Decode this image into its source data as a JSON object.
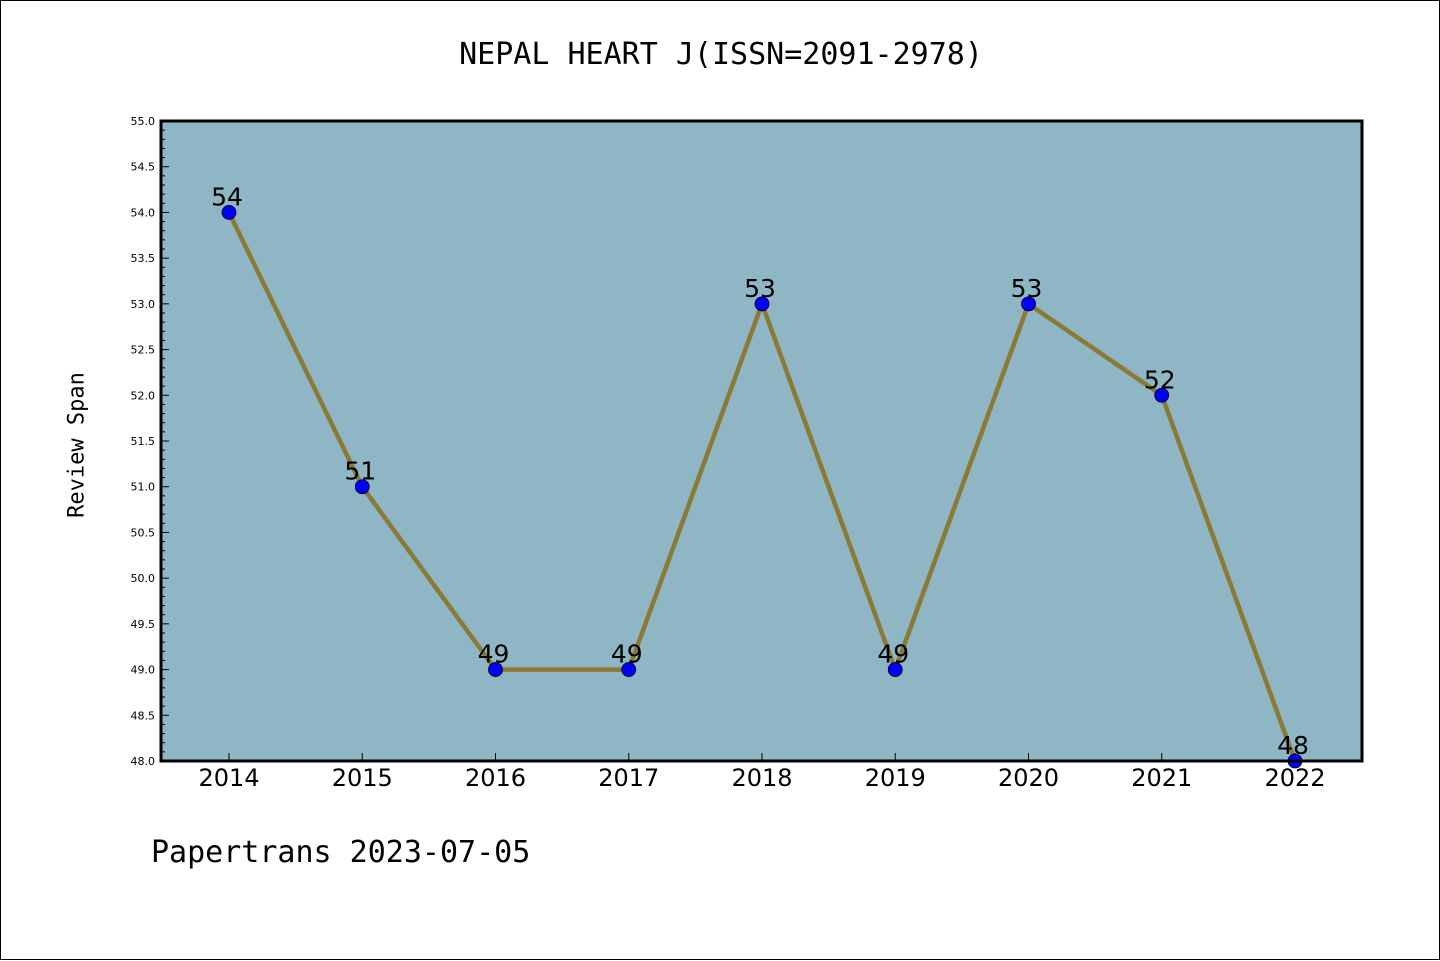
{
  "chart_data": {
    "type": "line",
    "title": "NEPAL HEART J(ISSN=2091-2978)",
    "xlabel": "",
    "ylabel": "Review Span",
    "categories": [
      "2014",
      "2015",
      "2016",
      "2017",
      "2018",
      "2019",
      "2020",
      "2021",
      "2022"
    ],
    "series": [
      {
        "values": [
          54,
          51,
          49,
          49,
          53,
          49,
          53,
          52,
          48
        ]
      }
    ],
    "data_labels": [
      "54",
      "51",
      "49",
      "49",
      "53",
      "49",
      "53",
      "52",
      "48"
    ],
    "y_ticks": [
      "48.0",
      "48.5",
      "49.0",
      "49.5",
      "50.0",
      "50.5",
      "51.0",
      "51.5",
      "52.0",
      "52.5",
      "53.0",
      "53.5",
      "54.0",
      "54.5",
      "55.0"
    ],
    "ylim": [
      48,
      55
    ],
    "grid": false,
    "legend": "none",
    "colors": {
      "plot_background": "#8fb6c4",
      "line": "#8b7a36",
      "marker": "#0000ff"
    }
  },
  "footer": "Papertrans 2023-07-05"
}
